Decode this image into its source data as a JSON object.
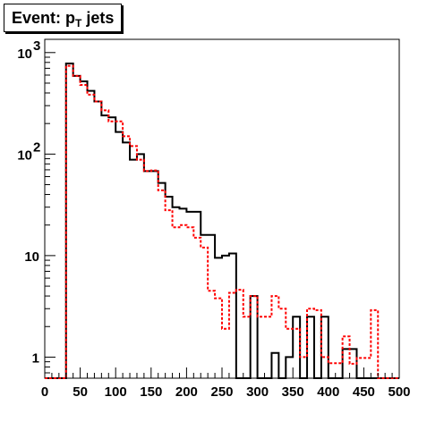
{
  "chart_data": {
    "type": "histogram",
    "title": {
      "prefix": "Event: p",
      "subscript": "T",
      "suffix": "jets"
    },
    "xlabel": "",
    "ylabel": "",
    "xlim": [
      0,
      500
    ],
    "ylim": [
      0.62,
      1350
    ],
    "yscale": "log",
    "x_ticks": [
      "0",
      "50",
      "100",
      "150",
      "200",
      "250",
      "300",
      "350",
      "400",
      "450",
      "500"
    ],
    "y_ticks": [
      {
        "value": 1,
        "label": "1"
      },
      {
        "value": 10,
        "label": "10"
      },
      {
        "value": 100,
        "label": "10",
        "exp": "2"
      },
      {
        "value": 1000,
        "label": "10",
        "exp": "3"
      }
    ],
    "bin_edges": [
      0,
      10,
      20,
      30,
      40,
      50,
      60,
      70,
      80,
      90,
      100,
      110,
      120,
      130,
      140,
      150,
      160,
      170,
      180,
      190,
      200,
      210,
      220,
      230,
      240,
      250,
      260,
      270,
      280,
      290,
      300,
      310,
      320,
      330,
      340,
      350,
      360,
      370,
      380,
      390,
      400,
      410,
      420,
      430,
      440,
      450,
      460,
      470,
      480,
      490,
      500
    ],
    "series": [
      {
        "color": "#000000",
        "dash": false,
        "values": [
          0,
          0,
          0,
          780,
          590,
          520,
          420,
          330,
          240,
          230,
          165,
          130,
          88,
          100,
          68,
          68,
          52,
          38,
          30,
          29,
          27,
          27,
          16,
          16,
          9.5,
          10,
          10.5,
          0,
          0,
          4,
          0,
          0,
          1.1,
          0,
          1,
          2.5,
          0,
          2.5,
          0,
          2.5,
          0,
          0,
          1.2,
          1.2,
          0,
          0,
          0,
          0,
          0,
          0
        ]
      },
      {
        "color": "#ff0000",
        "dash": true,
        "values": [
          0,
          0,
          0,
          740,
          590,
          480,
          385,
          330,
          270,
          210,
          210,
          150,
          120,
          88,
          68,
          69,
          44,
          28,
          19,
          20,
          19,
          15,
          12,
          4.5,
          3.8,
          1.9,
          4.3,
          4.6,
          2.5,
          4,
          2.5,
          2.5,
          4,
          3,
          1.9,
          1.9,
          1,
          3,
          2.9,
          1,
          0.87,
          0.87,
          1.6,
          0.86,
          0.98,
          0.98,
          2.9,
          0,
          0,
          0
        ]
      }
    ]
  }
}
